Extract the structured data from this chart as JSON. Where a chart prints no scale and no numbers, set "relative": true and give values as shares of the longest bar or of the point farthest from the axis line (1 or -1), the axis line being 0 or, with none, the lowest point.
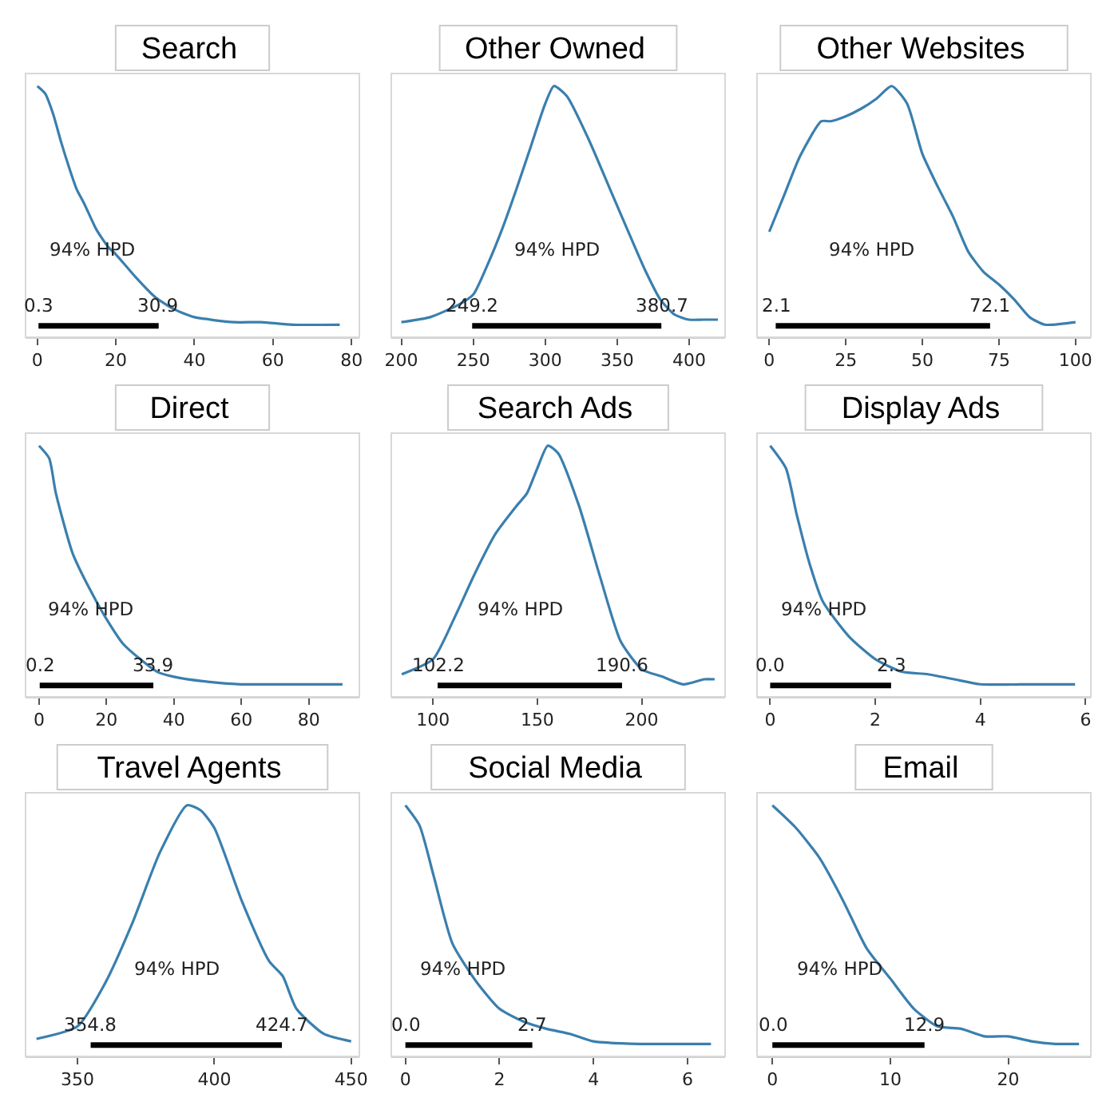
{
  "chart_data": [
    {
      "type": "line",
      "title": "Search",
      "relative": true,
      "tick_labels": "x",
      "x": [
        0,
        2,
        4,
        6,
        8,
        10,
        12,
        15,
        18,
        20,
        25,
        30,
        35,
        40,
        50,
        57,
        65,
        77
      ],
      "xlim": [
        -3,
        82
      ],
      "xticks": [
        0,
        20,
        40,
        60,
        80
      ],
      "series": [
        {
          "color": "#3a7fae",
          "values": [
            1,
            0.97,
            0.89,
            0.78,
            0.68,
            0.59,
            0.53,
            0.43,
            0.36,
            0.33,
            0.24,
            0.16,
            0.11,
            0.08,
            0.06,
            0.06,
            0.05,
            0.05
          ]
        },
        {
          "color": "#000000",
          "x": [
            0.3,
            30.9
          ],
          "values": [
            0.045,
            0.045
          ]
        }
      ],
      "annotations": [
        "94% HPD",
        {
          "text": "0.3",
          "x": 0.3,
          "y": 0.045
        },
        {
          "text": "30.9",
          "x": 30.9,
          "y": 0.045
        }
      ]
    },
    {
      "type": "line",
      "title": "Other Owned",
      "relative": true,
      "tick_labels": "x",
      "x": [
        200,
        220,
        240,
        250,
        260,
        270,
        280,
        290,
        300,
        306,
        315,
        330,
        345,
        360,
        370,
        380,
        390,
        400,
        410,
        420
      ],
      "xlim": [
        193,
        425
      ],
      "xticks": [
        200,
        250,
        300,
        350,
        400
      ],
      "series": [
        {
          "color": "#3a7fae",
          "values": [
            0.06,
            0.08,
            0.13,
            0.17,
            0.29,
            0.43,
            0.59,
            0.76,
            0.93,
            1,
            0.96,
            0.79,
            0.59,
            0.39,
            0.26,
            0.15,
            0.09,
            0.07,
            0.07,
            0.07
          ]
        },
        {
          "color": "#000000",
          "x": [
            249.2,
            380.7
          ],
          "values": [
            0.045,
            0.045
          ]
        }
      ],
      "annotations": [
        "94% HPD",
        {
          "text": "249.2",
          "x": 249.2,
          "y": 0.045
        },
        {
          "text": "380.7",
          "x": 380.7,
          "y": 0.045
        }
      ]
    },
    {
      "type": "line",
      "title": "Other Websites",
      "relative": true,
      "tick_labels": "x",
      "x": [
        0,
        5,
        10,
        17,
        20,
        25,
        30,
        35,
        40,
        45,
        50,
        55,
        60,
        65,
        70,
        75,
        80,
        85,
        90,
        100
      ],
      "xlim": [
        -4,
        105
      ],
      "xticks": [
        0,
        25,
        50,
        75,
        100
      ],
      "series": [
        {
          "color": "#3a7fae",
          "values": [
            0.42,
            0.57,
            0.72,
            0.86,
            0.86,
            0.88,
            0.91,
            0.95,
            1,
            0.93,
            0.73,
            0.6,
            0.48,
            0.34,
            0.26,
            0.21,
            0.15,
            0.08,
            0.05,
            0.06
          ]
        },
        {
          "color": "#000000",
          "x": [
            2.1,
            72.1
          ],
          "values": [
            0.045,
            0.045
          ]
        }
      ],
      "annotations": [
        "94% HPD",
        {
          "text": "2.1",
          "x": 2.1,
          "y": 0.045
        },
        {
          "text": "72.1",
          "x": 72.1,
          "y": 0.045
        }
      ]
    },
    {
      "type": "line",
      "title": "Direct",
      "relative": true,
      "tick_labels": "x",
      "x": [
        0,
        3,
        5,
        10,
        15,
        20,
        25,
        30,
        35,
        40,
        50,
        60,
        70,
        90
      ],
      "xlim": [
        -4,
        95
      ],
      "xticks": [
        0,
        20,
        40,
        60,
        80
      ],
      "series": [
        {
          "color": "#3a7fae",
          "values": [
            1,
            0.95,
            0.81,
            0.57,
            0.43,
            0.31,
            0.21,
            0.15,
            0.1,
            0.08,
            0.06,
            0.05,
            0.05,
            0.05
          ]
        },
        {
          "color": "#000000",
          "x": [
            0.2,
            33.9
          ],
          "values": [
            0.045,
            0.045
          ]
        }
      ],
      "annotations": [
        "94% HPD",
        {
          "text": "0.2",
          "x": 0.2,
          "y": 0.045
        },
        {
          "text": "33.9",
          "x": 33.9,
          "y": 0.045
        }
      ]
    },
    {
      "type": "line",
      "title": "Search Ads",
      "relative": true,
      "tick_labels": "x",
      "x": [
        85,
        100,
        110,
        120,
        130,
        140,
        145,
        150,
        155,
        160,
        170,
        180,
        190,
        200,
        210,
        220,
        230,
        235
      ],
      "xlim": [
        80,
        240
      ],
      "xticks": [
        100,
        150,
        200
      ],
      "series": [
        {
          "color": "#3a7fae",
          "values": [
            0.09,
            0.15,
            0.31,
            0.49,
            0.65,
            0.76,
            0.81,
            0.91,
            1,
            0.97,
            0.76,
            0.48,
            0.22,
            0.11,
            0.08,
            0.05,
            0.07,
            0.07
          ]
        },
        {
          "color": "#000000",
          "x": [
            102.2,
            190.6
          ],
          "values": [
            0.045,
            0.045
          ]
        }
      ],
      "annotations": [
        "94% HPD",
        {
          "text": "102.2",
          "x": 102.2,
          "y": 0.045
        },
        {
          "text": "190.6",
          "x": 190.6,
          "y": 0.045
        }
      ]
    },
    {
      "type": "line",
      "title": "Display Ads",
      "relative": true,
      "tick_labels": "x",
      "x": [
        0,
        0.3,
        0.5,
        0.75,
        1,
        1.5,
        2,
        2.5,
        3,
        3.5,
        4,
        5,
        5.8
      ],
      "xlim": [
        -0.25,
        6.1
      ],
      "xticks": [
        0,
        2,
        4,
        6
      ],
      "series": [
        {
          "color": "#3a7fae",
          "values": [
            1,
            0.91,
            0.73,
            0.53,
            0.38,
            0.24,
            0.15,
            0.1,
            0.09,
            0.07,
            0.05,
            0.05,
            0.05
          ]
        },
        {
          "color": "#000000",
          "x": [
            0.0,
            2.3
          ],
          "values": [
            0.045,
            0.045
          ]
        }
      ],
      "annotations": [
        "94% HPD",
        {
          "text": "0.0",
          "x": 0.0,
          "y": 0.045
        },
        {
          "text": "2.3",
          "x": 2.3,
          "y": 0.045
        }
      ]
    },
    {
      "type": "line",
      "title": "Travel Agents",
      "relative": true,
      "tick_labels": "x",
      "x": [
        335,
        350,
        360,
        370,
        380,
        390,
        395,
        400,
        410,
        420,
        425,
        430,
        440,
        450
      ],
      "xlim": [
        331,
        453
      ],
      "xticks": [
        350,
        400,
        450
      ],
      "series": [
        {
          "color": "#3a7fae",
          "values": [
            0.07,
            0.12,
            0.29,
            0.53,
            0.81,
            1,
            0.98,
            0.91,
            0.62,
            0.38,
            0.32,
            0.19,
            0.09,
            0.06
          ]
        },
        {
          "color": "#000000",
          "x": [
            354.8,
            424.7
          ],
          "values": [
            0.045,
            0.045
          ]
        }
      ],
      "annotations": [
        "94% HPD",
        {
          "text": "354.8",
          "x": 354.8,
          "y": 0.045
        },
        {
          "text": "424.7",
          "x": 424.7,
          "y": 0.045
        }
      ]
    },
    {
      "type": "line",
      "title": "Social Media",
      "relative": true,
      "tick_labels": "x",
      "x": [
        0,
        0.3,
        0.6,
        1,
        1.5,
        2,
        2.5,
        3,
        3.5,
        4,
        5,
        6,
        6.5
      ],
      "xlim": [
        -0.3,
        6.8
      ],
      "xticks": [
        0,
        2,
        4,
        6
      ],
      "series": [
        {
          "color": "#3a7fae",
          "values": [
            1,
            0.92,
            0.72,
            0.45,
            0.3,
            0.19,
            0.14,
            0.11,
            0.09,
            0.06,
            0.05,
            0.05,
            0.05
          ]
        },
        {
          "color": "#000000",
          "x": [
            0.0,
            2.7
          ],
          "values": [
            0.045,
            0.045
          ]
        }
      ],
      "annotations": [
        "94% HPD",
        {
          "text": "0.0",
          "x": 0.0,
          "y": 0.045
        },
        {
          "text": "2.7",
          "x": 2.7,
          "y": 0.045
        }
      ]
    },
    {
      "type": "line",
      "title": "Email",
      "relative": true,
      "tick_labels": "x",
      "x": [
        0,
        2,
        4,
        6,
        8,
        10,
        12,
        14,
        16,
        18,
        20,
        22,
        24,
        26
      ],
      "xlim": [
        -1.3,
        27
      ],
      "xticks": [
        0,
        10,
        20
      ],
      "series": [
        {
          "color": "#3a7fae",
          "values": [
            1,
            0.91,
            0.79,
            0.62,
            0.43,
            0.31,
            0.19,
            0.12,
            0.11,
            0.08,
            0.08,
            0.06,
            0.05,
            0.05
          ]
        },
        {
          "color": "#000000",
          "x": [
            0.0,
            12.9
          ],
          "values": [
            0.045,
            0.045
          ]
        }
      ],
      "annotations": [
        "94% HPD",
        {
          "text": "0.0",
          "x": 0.0,
          "y": 0.045
        },
        {
          "text": "12.9",
          "x": 12.9,
          "y": 0.045
        }
      ]
    }
  ]
}
